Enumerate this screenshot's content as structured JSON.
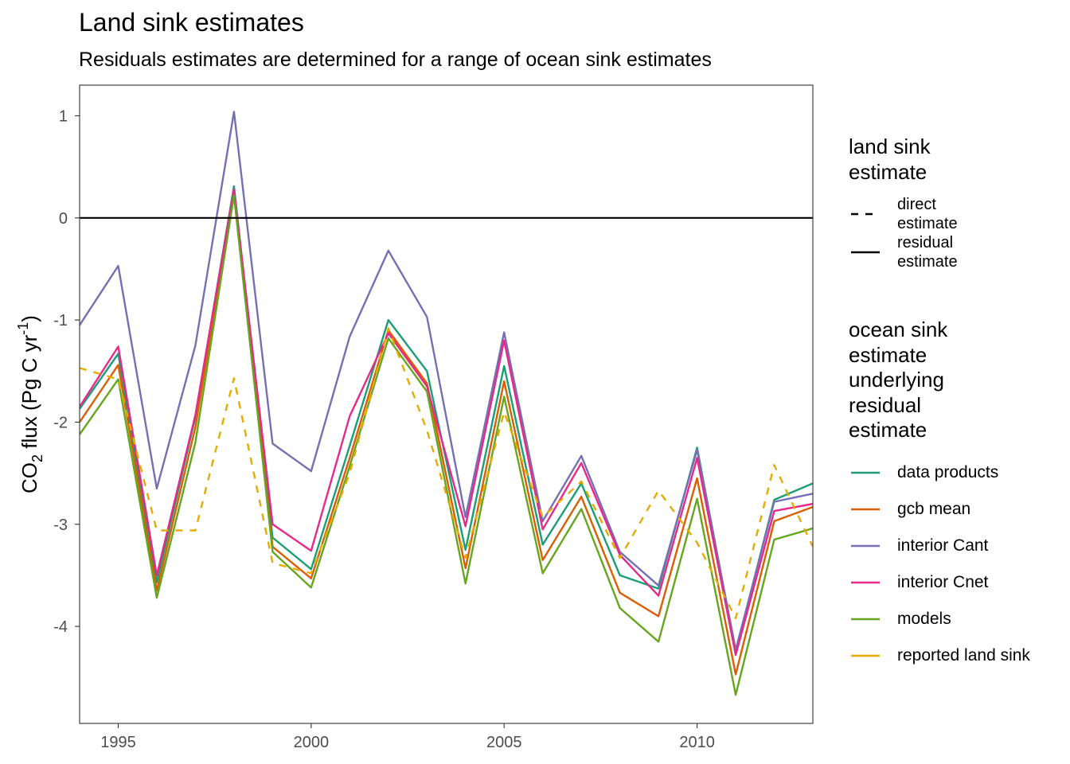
{
  "title": "Land sink estimates",
  "subtitle": "Residuals estimates are determined for a range of ocean sink estimates",
  "legend_linetype": {
    "title_lines": [
      "land sink",
      "estimate"
    ],
    "items": [
      {
        "label_lines": [
          "direct",
          "estimate"
        ],
        "dash": "dashed"
      },
      {
        "label_lines": [
          "residual",
          "estimate"
        ],
        "dash": "solid"
      }
    ]
  },
  "legend_color": {
    "title_lines": [
      "ocean sink",
      "estimate",
      "underlying",
      "residual",
      "estimate"
    ],
    "items": [
      {
        "label": "data products",
        "color": "#1B9E77"
      },
      {
        "label": "gcb mean",
        "color": "#D95F02"
      },
      {
        "label": "interior Cant",
        "color": "#7570B3"
      },
      {
        "label": "interior Cnet",
        "color": "#E7298A"
      },
      {
        "label": "models",
        "color": "#66A61E"
      },
      {
        "label": "reported land sink",
        "color": "#E6AB02"
      }
    ]
  },
  "chart_data": {
    "type": "line",
    "title": "Land sink estimates",
    "subtitle": "Residuals estimates are determined for a range of ocean sink estimates",
    "xlabel": "",
    "ylabel": "CO2 flux (Pg C yr-1)",
    "ylabel_parts": {
      "pre": "CO",
      "sub": "2",
      "mid": " flux (Pg C yr",
      "sup": "-1",
      "post": ")"
    },
    "xlim": [
      1994,
      2013
    ],
    "ylim": [
      -4.95,
      1.3
    ],
    "x_ticks": [
      1995,
      2000,
      2005,
      2010
    ],
    "x_tick_labels": [
      "1995",
      "2000",
      "2005",
      "2010"
    ],
    "y_ticks": [
      1,
      0,
      -1,
      -2,
      -3,
      -4
    ],
    "y_tick_labels": [
      "1",
      "0",
      "-1",
      "-2",
      "-3",
      "-4"
    ],
    "hline": 0,
    "grid": false,
    "legend_position": "right",
    "x": [
      1994,
      1995,
      1996,
      1997,
      1998,
      1999,
      2000,
      2001,
      2002,
      2003,
      2004,
      2005,
      2006,
      2007,
      2008,
      2009,
      2010,
      2011,
      2012,
      2013
    ],
    "series": [
      {
        "name": "data products",
        "color": "#1B9E77",
        "dash": "solid",
        "values": [
          -1.87,
          -1.33,
          -3.57,
          -1.95,
          0.31,
          -3.13,
          -3.44,
          -2.23,
          -1.0,
          -1.5,
          -3.25,
          -1.45,
          -3.2,
          -2.6,
          -3.5,
          -3.63,
          -2.25,
          -4.25,
          -2.76,
          -2.6
        ]
      },
      {
        "name": "gcb mean",
        "color": "#D95F02",
        "dash": "solid",
        "values": [
          -2.0,
          -1.44,
          -3.65,
          -2.05,
          0.25,
          -3.22,
          -3.53,
          -2.35,
          -1.1,
          -1.62,
          -3.43,
          -1.6,
          -3.35,
          -2.73,
          -3.67,
          -3.9,
          -2.55,
          -4.47,
          -2.97,
          -2.83
        ]
      },
      {
        "name": "interior Cant",
        "color": "#7570B3",
        "dash": "solid",
        "values": [
          -1.05,
          -0.47,
          -2.65,
          -1.25,
          1.04,
          -2.21,
          -2.48,
          -1.16,
          -0.32,
          -0.97,
          -2.93,
          -1.12,
          -2.97,
          -2.33,
          -3.27,
          -3.6,
          -2.27,
          -4.23,
          -2.78,
          -2.7
        ]
      },
      {
        "name": "interior Cnet",
        "color": "#E7298A",
        "dash": "solid",
        "values": [
          -1.85,
          -1.26,
          -3.5,
          -1.93,
          0.28,
          -3.0,
          -3.26,
          -1.94,
          -1.13,
          -1.65,
          -3.02,
          -1.2,
          -3.05,
          -2.4,
          -3.3,
          -3.7,
          -2.35,
          -4.28,
          -2.87,
          -2.8
        ]
      },
      {
        "name": "models",
        "color": "#66A61E",
        "dash": "solid",
        "values": [
          -2.12,
          -1.58,
          -3.72,
          -2.2,
          0.22,
          -3.27,
          -3.62,
          -2.43,
          -1.18,
          -1.7,
          -3.58,
          -1.75,
          -3.48,
          -2.85,
          -3.82,
          -4.15,
          -2.75,
          -4.67,
          -3.15,
          -3.04
        ]
      },
      {
        "name": "reported land sink",
        "color": "#E6AB02",
        "dash": "dashed",
        "values": [
          -1.47,
          -1.58,
          -3.06,
          -3.06,
          -1.57,
          -3.38,
          -3.48,
          -2.5,
          -1.08,
          -2.08,
          -3.33,
          -1.9,
          -2.93,
          -2.58,
          -3.33,
          -2.67,
          -3.18,
          -3.92,
          -2.42,
          -3.22
        ]
      }
    ]
  }
}
